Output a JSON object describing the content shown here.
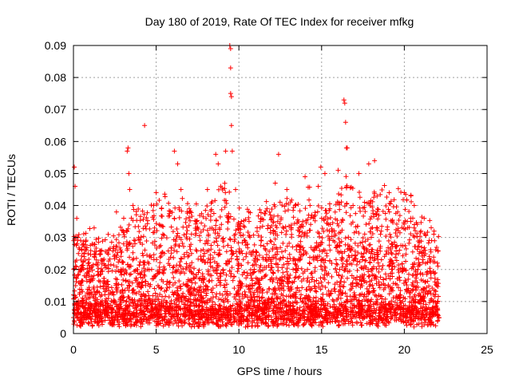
{
  "chart_data": {
    "type": "scatter",
    "title": "Day 180 of 2019, Rate Of TEC Index for receiver mfkg",
    "xlabel": "GPS time / hours",
    "ylabel": "ROTI / TECUs",
    "xlim": [
      0,
      25
    ],
    "ylim": [
      0,
      0.09
    ],
    "x_ticks": [
      "0",
      "5",
      "10",
      "15",
      "20",
      "25"
    ],
    "y_ticks": [
      "0",
      "0.01",
      "0.02",
      "0.03",
      "0.04",
      "0.05",
      "0.06",
      "0.07",
      "0.08",
      "0.09"
    ],
    "x_tick_values": [
      0,
      5,
      10,
      15,
      20,
      25
    ],
    "y_tick_values": [
      0,
      0.01,
      0.02,
      0.03,
      0.04,
      0.05,
      0.06,
      0.07,
      0.08,
      0.09
    ],
    "grid": true,
    "marker": "+",
    "color": "#ff0000",
    "data_x_range": [
      0,
      22.1
    ],
    "series": [
      {
        "x": [
          0.0,
          0.05,
          0.1,
          0.15,
          0.2,
          0.3,
          0.45,
          0.6,
          1.25,
          1.7,
          2.1,
          2.6,
          3.0,
          3.25,
          3.3,
          3.35,
          3.4,
          3.6,
          4.3,
          4.85,
          5.0,
          5.4,
          6.1,
          6.3,
          6.5,
          7.0,
          7.45,
          8.1,
          8.6,
          8.75,
          8.9,
          9.2,
          9.45,
          9.5,
          9.5,
          9.5,
          9.55,
          9.55,
          9.6,
          9.8,
          10.15,
          10.6,
          11.3,
          11.7,
          12.2,
          12.4,
          12.9,
          13.4,
          13.8,
          14.0,
          14.3,
          14.8,
          14.95,
          15.2,
          15.5,
          16.0,
          16.35,
          16.4,
          16.45,
          16.5,
          16.55,
          16.9,
          17.25,
          17.6,
          17.85,
          18.2,
          18.6,
          19.1,
          19.6,
          20.0,
          20.4,
          20.6,
          21.0,
          21.2,
          21.5,
          21.8,
          22.0,
          22.1
        ],
        "y": [
          0.005,
          0.052,
          0.046,
          0.03,
          0.036,
          0.025,
          0.02,
          0.028,
          0.033,
          0.026,
          0.031,
          0.038,
          0.032,
          0.057,
          0.058,
          0.05,
          0.045,
          0.04,
          0.065,
          0.04,
          0.044,
          0.031,
          0.057,
          0.053,
          0.045,
          0.039,
          0.035,
          0.045,
          0.056,
          0.053,
          0.046,
          0.057,
          0.09,
          0.089,
          0.083,
          0.075,
          0.074,
          0.065,
          0.057,
          0.045,
          0.035,
          0.038,
          0.035,
          0.039,
          0.047,
          0.056,
          0.045,
          0.04,
          0.034,
          0.049,
          0.04,
          0.046,
          0.052,
          0.05,
          0.039,
          0.051,
          0.073,
          0.072,
          0.066,
          0.058,
          0.058,
          0.04,
          0.05,
          0.041,
          0.053,
          0.054,
          0.032,
          0.038,
          0.038,
          0.044,
          0.043,
          0.04,
          0.032,
          0.036,
          0.029,
          0.032,
          0.022,
          0.005
        ]
      }
    ]
  }
}
